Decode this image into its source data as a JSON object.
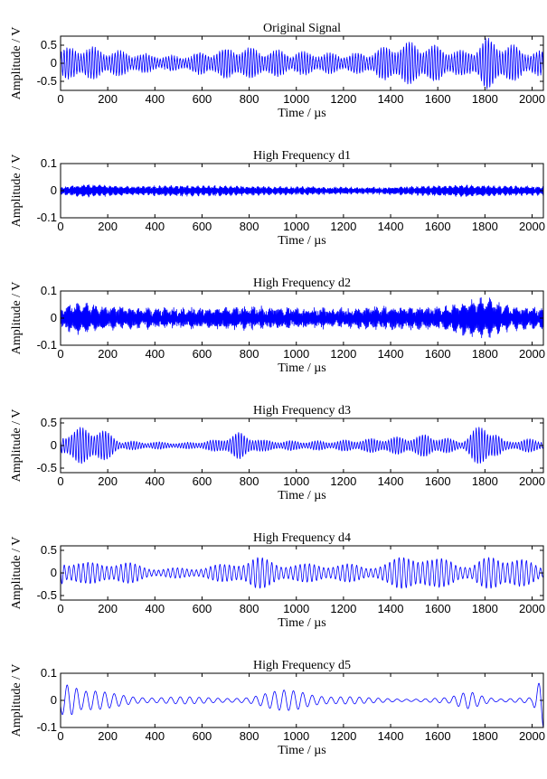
{
  "chart_data": [
    {
      "type": "line",
      "title": "Original Signal",
      "xlabel": "Time / µs",
      "ylabel": "Amplitude / V",
      "xlim": [
        0,
        2048
      ],
      "ylim": [
        -0.75,
        0.75
      ],
      "xticks": [
        0,
        200,
        400,
        600,
        800,
        1000,
        1200,
        1400,
        1600,
        1800,
        2000
      ],
      "yticks": [
        -0.5,
        0,
        0.5
      ],
      "ytick_labels": [
        "-0.5",
        "0",
        "0.5"
      ],
      "color": "#0000ff",
      "grid": false,
      "series": [
        {
          "carrier_period_us": 12,
          "noise": 0.04,
          "envelope_t": [
            0,
            60,
            150,
            260,
            400,
            500,
            600,
            750,
            900,
            1000,
            1100,
            1200,
            1300,
            1400,
            1480,
            1560,
            1650,
            1720,
            1800,
            1880,
            1950,
            2048
          ],
          "envelope_a": [
            0.35,
            0.48,
            0.42,
            0.32,
            0.22,
            0.18,
            0.3,
            0.45,
            0.35,
            0.32,
            0.28,
            0.24,
            0.3,
            0.5,
            0.58,
            0.52,
            0.4,
            0.3,
            0.7,
            0.58,
            0.42,
            0.3
          ]
        }
      ]
    },
    {
      "type": "line",
      "title": "High Frequency d1",
      "xlabel": "Time / µs",
      "ylabel": "Amplitude / V",
      "xlim": [
        0,
        2048
      ],
      "ylim": [
        -0.1,
        0.1
      ],
      "xticks": [
        0,
        200,
        400,
        600,
        800,
        1000,
        1200,
        1400,
        1600,
        1800,
        2000
      ],
      "yticks": [
        -0.1,
        0,
        0.1
      ],
      "ytick_labels": [
        "-0.1",
        "0",
        "0.1"
      ],
      "color": "#0000ff",
      "grid": false,
      "series": [
        {
          "carrier_period_us": 2.5,
          "noise": 0.004,
          "envelope_t": [
            0,
            100,
            300,
            500,
            700,
            900,
            1100,
            1300,
            1500,
            1700,
            1900,
            2048
          ],
          "envelope_a": [
            0.012,
            0.022,
            0.014,
            0.018,
            0.016,
            0.013,
            0.012,
            0.01,
            0.014,
            0.02,
            0.016,
            0.014
          ]
        }
      ]
    },
    {
      "type": "line",
      "title": "High Frequency d2",
      "xlabel": "Time / µs",
      "ylabel": "Amplitude / V",
      "xlim": [
        0,
        2048
      ],
      "ylim": [
        -0.1,
        0.1
      ],
      "xticks": [
        0,
        200,
        400,
        600,
        800,
        1000,
        1200,
        1400,
        1600,
        1800,
        2000
      ],
      "yticks": [
        -0.1,
        0,
        0.1
      ],
      "ytick_labels": [
        "-0.1",
        "0",
        "0.1"
      ],
      "color": "#0000ff",
      "grid": false,
      "series": [
        {
          "carrier_period_us": 4,
          "noise": 0.012,
          "envelope_t": [
            0,
            80,
            200,
            400,
            600,
            800,
            1000,
            1200,
            1400,
            1600,
            1800,
            1900,
            2048
          ],
          "envelope_a": [
            0.03,
            0.055,
            0.035,
            0.03,
            0.03,
            0.035,
            0.03,
            0.03,
            0.035,
            0.035,
            0.07,
            0.04,
            0.03
          ]
        }
      ]
    },
    {
      "type": "line",
      "title": "High Frequency d3",
      "xlabel": "Time / µs",
      "ylabel": "Amplitude / V",
      "xlim": [
        0,
        2048
      ],
      "ylim": [
        -0.6,
        0.6
      ],
      "xticks": [
        0,
        200,
        400,
        600,
        800,
        1000,
        1200,
        1400,
        1600,
        1800,
        2000
      ],
      "yticks": [
        -0.5,
        0,
        0.5
      ],
      "ytick_labels": [
        "-0.5",
        "0",
        "0.5"
      ],
      "color": "#0000ff",
      "grid": false,
      "series": [
        {
          "carrier_period_us": 12,
          "noise": 0.01,
          "envelope_t": [
            0,
            40,
            160,
            260,
            400,
            520,
            650,
            760,
            860,
            1000,
            1150,
            1300,
            1460,
            1560,
            1700,
            1800,
            1880,
            2000,
            2048
          ],
          "envelope_a": [
            0.2,
            0.38,
            0.42,
            0.1,
            0.08,
            0.06,
            0.12,
            0.3,
            0.12,
            0.1,
            0.1,
            0.15,
            0.2,
            0.25,
            0.1,
            0.55,
            0.1,
            0.15,
            0.12
          ]
        }
      ]
    },
    {
      "type": "line",
      "title": "High Frequency d4",
      "xlabel": "Time / µs",
      "ylabel": "Amplitude / V",
      "xlim": [
        0,
        2048
      ],
      "ylim": [
        -0.6,
        0.6
      ],
      "xticks": [
        0,
        200,
        400,
        600,
        800,
        1000,
        1200,
        1400,
        1600,
        1800,
        2000
      ],
      "yticks": [
        -0.5,
        0,
        0.5
      ],
      "ytick_labels": [
        "-0.5",
        "0",
        "0.5"
      ],
      "color": "#0000ff",
      "grid": false,
      "series": [
        {
          "carrier_period_us": 20,
          "noise": 0.008,
          "envelope_t": [
            0,
            20,
            100,
            200,
            300,
            420,
            560,
            700,
            820,
            920,
            1040,
            1180,
            1300,
            1400,
            1490,
            1580,
            1660,
            1740,
            1850,
            1960,
            2048
          ],
          "envelope_a": [
            0.5,
            0.3,
            0.22,
            0.28,
            0.22,
            0.1,
            0.12,
            0.2,
            0.38,
            0.25,
            0.2,
            0.22,
            0.16,
            0.25,
            0.52,
            0.3,
            0.35,
            0.15,
            0.48,
            0.3,
            0.15
          ]
        }
      ]
    },
    {
      "type": "line",
      "title": "High Frequency d5",
      "xlabel": "Time / µs",
      "ylabel": "Amplitude / V",
      "xlim": [
        0,
        2048
      ],
      "ylim": [
        -0.1,
        0.1
      ],
      "xticks": [
        0,
        200,
        400,
        600,
        800,
        1000,
        1200,
        1400,
        1600,
        1800,
        2000
      ],
      "yticks": [
        -0.1,
        0,
        0.1
      ],
      "ytick_labels": [
        "-0.1",
        "0",
        "0.1"
      ],
      "color": "#0000ff",
      "grid": false,
      "series": [
        {
          "carrier_period_us": 40,
          "noise": 0,
          "envelope_t": [
            0,
            30,
            90,
            200,
            400,
            600,
            800,
            950,
            1020,
            1150,
            1300,
            1500,
            1650,
            1740,
            1850,
            2000,
            2048
          ],
          "envelope_a": [
            0.1,
            0.1,
            0.04,
            0.03,
            0.015,
            0.012,
            0.015,
            0.04,
            0.045,
            0.02,
            0.01,
            0.008,
            0.01,
            0.04,
            0.01,
            0.01,
            0.1
          ]
        }
      ]
    }
  ]
}
